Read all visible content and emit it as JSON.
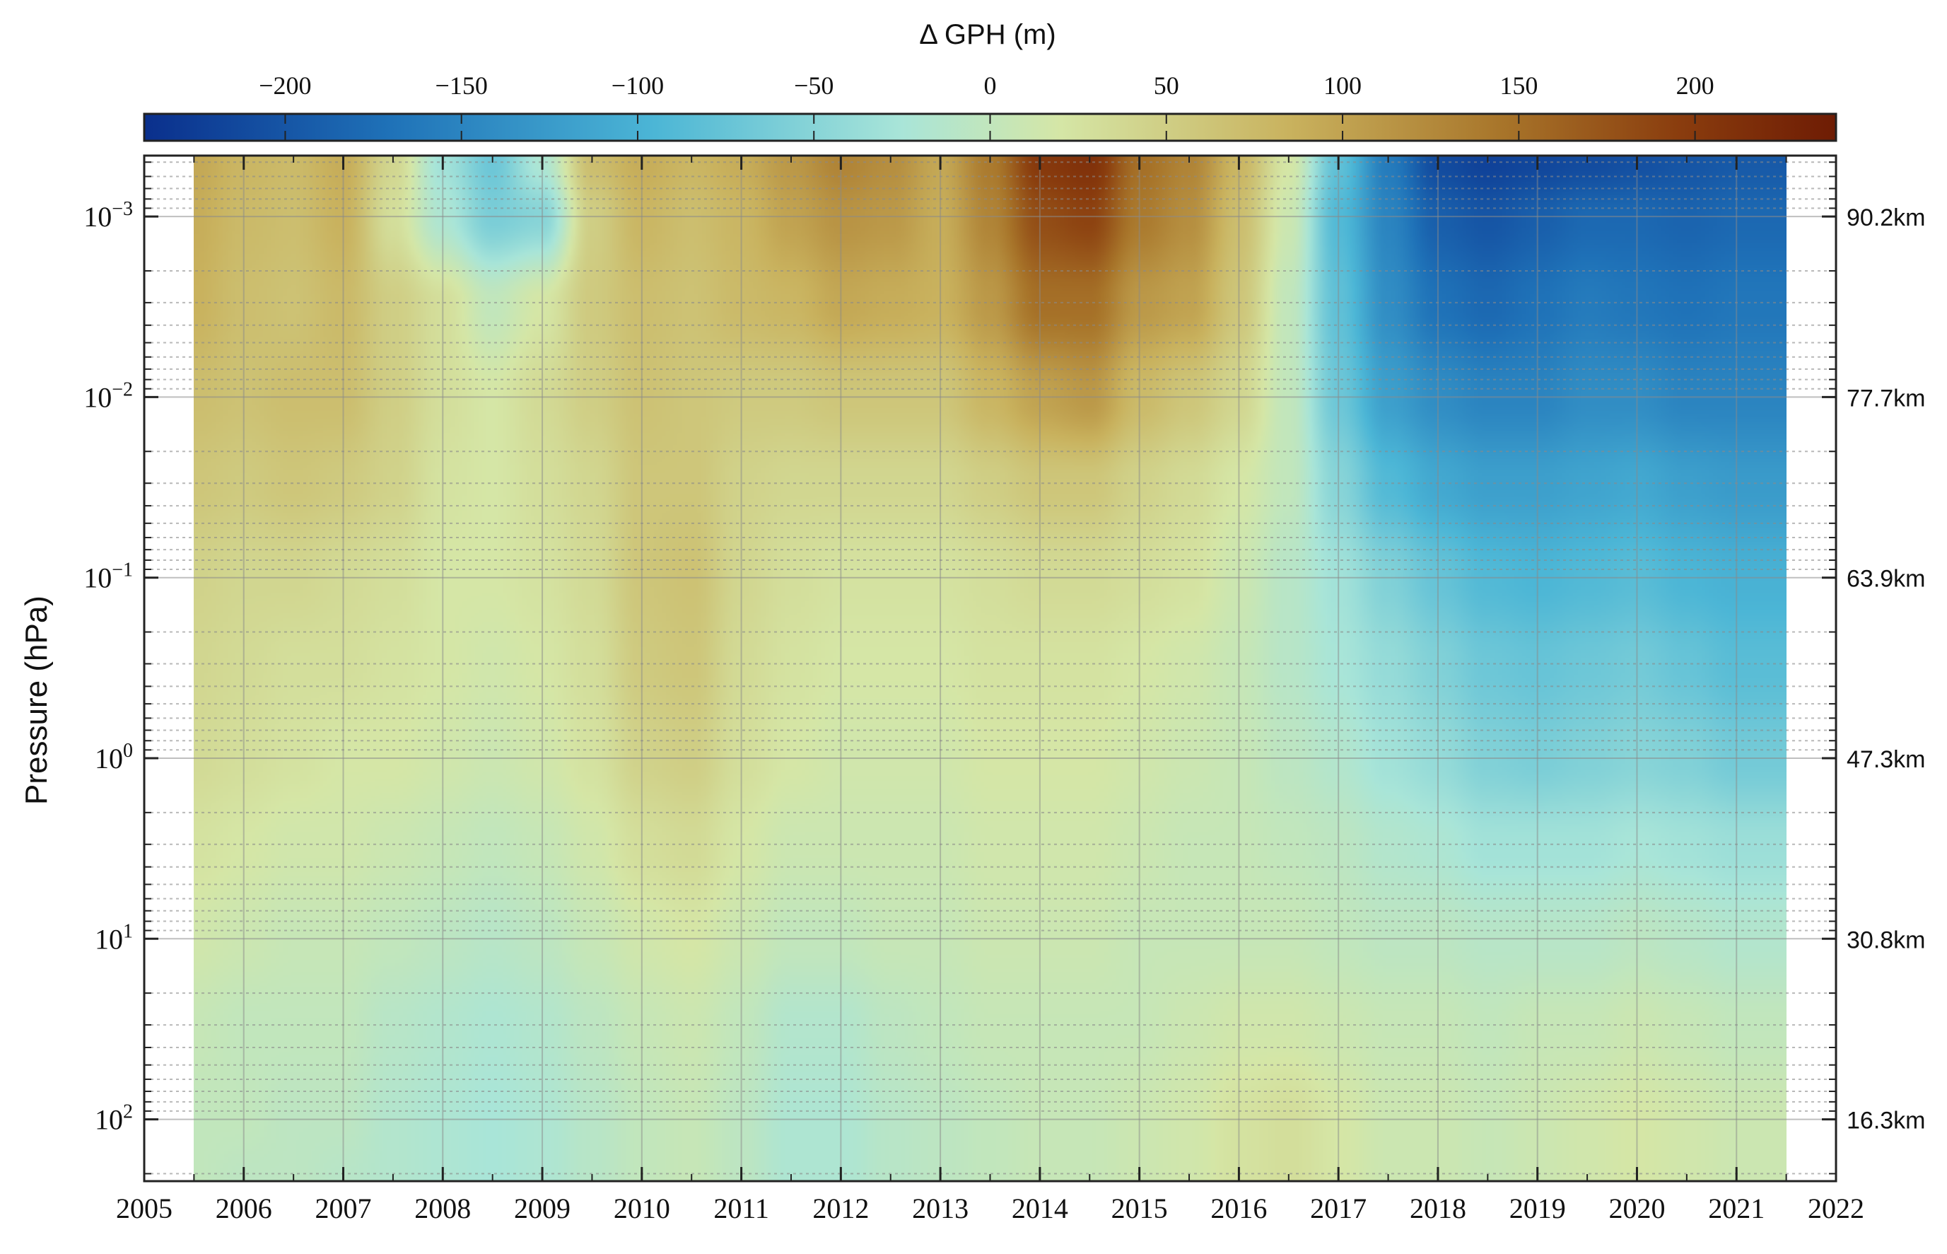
{
  "chart_data": {
    "type": "heatmap",
    "title": "",
    "xlabel": "",
    "ylabel": "Pressure (hPa)",
    "y_scale": "log",
    "y_inverted": true,
    "grid": true,
    "xlim": [
      2005,
      2022
    ],
    "ylim_hpa": [
      0.00046,
      220
    ],
    "x_ticks": [
      "2005",
      "2006",
      "2007",
      "2008",
      "2009",
      "2010",
      "2011",
      "2012",
      "2013",
      "2014",
      "2015",
      "2016",
      "2017",
      "2018",
      "2019",
      "2020",
      "2021",
      "2022"
    ],
    "x_tick_values": [
      2005,
      2006,
      2007,
      2008,
      2009,
      2010,
      2011,
      2012,
      2013,
      2014,
      2015,
      2016,
      2017,
      2018,
      2019,
      2020,
      2021,
      2022
    ],
    "y_ticks": [
      {
        "value": 0.001,
        "base": "10",
        "exp": "−3"
      },
      {
        "value": 0.01,
        "base": "10",
        "exp": "−2"
      },
      {
        "value": 0.1,
        "base": "10",
        "exp": "−1"
      },
      {
        "value": 1,
        "base": "10",
        "exp": "0"
      },
      {
        "value": 10,
        "base": "10",
        "exp": "1"
      },
      {
        "value": 100,
        "base": "10",
        "exp": "2"
      }
    ],
    "right_axis_ticks": [
      {
        "pressure": 0.001,
        "label": "90.2km"
      },
      {
        "pressure": 0.01,
        "label": "77.7km"
      },
      {
        "pressure": 0.1,
        "label": "63.9km"
      },
      {
        "pressure": 1,
        "label": "47.3km"
      },
      {
        "pressure": 10,
        "label": "30.8km"
      },
      {
        "pressure": 100,
        "label": "16.3km"
      }
    ],
    "colorbar": {
      "label": "Δ GPH (m)",
      "range": [
        -240,
        240
      ],
      "ticks": [
        -200,
        -150,
        -100,
        -50,
        0,
        50,
        100,
        150,
        200
      ],
      "tick_labels": [
        "−200",
        "−150",
        "−100",
        "−50",
        "0",
        "50",
        "100",
        "150",
        "200"
      ],
      "colors": [
        "#0a2f8c",
        "#1f72b8",
        "#4cb6d6",
        "#a9e5d8",
        "#d5e6a6",
        "#c9b25e",
        "#a8752a",
        "#8a3d0e",
        "#6e1c04"
      ],
      "color_values": [
        -240,
        -170,
        -95,
        -25,
        20,
        85,
        145,
        195,
        240
      ]
    },
    "data_extent_years": [
      2005.5,
      2021.5
    ],
    "data_years": [
      2005.5,
      2006,
      2006.5,
      2007,
      2007.5,
      2008,
      2008.5,
      2009,
      2009.5,
      2010,
      2010.5,
      2011,
      2011.5,
      2012,
      2012.5,
      2013,
      2013.5,
      2014,
      2014.5,
      2015,
      2015.5,
      2016,
      2016.5,
      2017,
      2017.5,
      2018,
      2018.5,
      2019,
      2019.5,
      2020,
      2020.5,
      2021,
      2021.5
    ],
    "data_pressures_hpa": [
      0.0005,
      0.001,
      0.003,
      0.01,
      0.03,
      0.1,
      0.3,
      1,
      3,
      10,
      30,
      100,
      220
    ],
    "delta_gph_m": [
      [
        95,
        80,
        75,
        90,
        40,
        -30,
        -70,
        -20,
        70,
        90,
        80,
        90,
        110,
        130,
        120,
        95,
        140,
        200,
        210,
        150,
        130,
        80,
        20,
        -80,
        -160,
        -210,
        -220,
        -215,
        -210,
        -205,
        -200,
        -195,
        -195
      ],
      [
        90,
        75,
        70,
        85,
        30,
        -20,
        -60,
        -50,
        50,
        80,
        70,
        80,
        100,
        115,
        110,
        90,
        130,
        180,
        190,
        140,
        120,
        70,
        10,
        -90,
        -150,
        -190,
        -200,
        -190,
        -180,
        -180,
        -185,
        -180,
        -180
      ],
      [
        85,
        70,
        65,
        75,
        50,
        30,
        0,
        20,
        55,
        70,
        65,
        75,
        80,
        95,
        90,
        85,
        110,
        150,
        150,
        110,
        100,
        60,
        0,
        -80,
        -140,
        -170,
        -180,
        -170,
        -160,
        -165,
        -170,
        -165,
        -165
      ],
      [
        70,
        65,
        70,
        70,
        50,
        30,
        20,
        35,
        50,
        65,
        60,
        55,
        55,
        60,
        60,
        60,
        80,
        100,
        110,
        75,
        60,
        40,
        0,
        -70,
        -120,
        -140,
        -150,
        -150,
        -140,
        -140,
        -150,
        -150,
        -150
      ],
      [
        60,
        55,
        60,
        55,
        45,
        25,
        20,
        30,
        40,
        60,
        60,
        45,
        40,
        40,
        40,
        40,
        50,
        60,
        60,
        45,
        35,
        20,
        0,
        -50,
        -90,
        -110,
        -120,
        -120,
        -115,
        -110,
        -120,
        -125,
        -125
      ],
      [
        45,
        40,
        40,
        35,
        30,
        20,
        20,
        25,
        35,
        60,
        65,
        40,
        30,
        25,
        25,
        25,
        30,
        35,
        35,
        30,
        25,
        10,
        -10,
        -30,
        -55,
        -75,
        -90,
        -95,
        -90,
        -85,
        -95,
        -100,
        -100
      ],
      [
        40,
        35,
        30,
        30,
        25,
        20,
        15,
        20,
        30,
        55,
        60,
        35,
        25,
        20,
        20,
        20,
        25,
        25,
        25,
        20,
        15,
        5,
        -10,
        -25,
        -40,
        -55,
        -70,
        -75,
        -70,
        -65,
        -75,
        -85,
        -85
      ],
      [
        35,
        30,
        25,
        20,
        20,
        15,
        10,
        15,
        25,
        45,
        50,
        30,
        20,
        15,
        15,
        15,
        20,
        20,
        20,
        15,
        10,
        5,
        -5,
        -15,
        -30,
        -40,
        -55,
        -60,
        -55,
        -50,
        -55,
        -65,
        -65
      ],
      [
        25,
        20,
        15,
        15,
        10,
        5,
        0,
        5,
        15,
        30,
        35,
        20,
        10,
        10,
        10,
        10,
        15,
        15,
        15,
        10,
        5,
        5,
        0,
        -5,
        -15,
        -20,
        -30,
        -30,
        -30,
        -25,
        -30,
        -35,
        -35
      ],
      [
        15,
        10,
        5,
        5,
        0,
        -5,
        -10,
        -5,
        5,
        15,
        20,
        10,
        0,
        0,
        5,
        5,
        10,
        10,
        10,
        5,
        5,
        5,
        5,
        0,
        -5,
        -5,
        -10,
        -10,
        -10,
        -5,
        -10,
        -15,
        -15
      ],
      [
        5,
        0,
        0,
        0,
        -10,
        -15,
        -20,
        -15,
        -5,
        5,
        10,
        0,
        -15,
        -15,
        -5,
        0,
        5,
        5,
        5,
        5,
        10,
        15,
        15,
        10,
        5,
        5,
        0,
        5,
        5,
        10,
        5,
        0,
        0
      ],
      [
        0,
        0,
        -5,
        -5,
        -15,
        -20,
        -25,
        -20,
        -10,
        0,
        5,
        -5,
        -20,
        -20,
        -10,
        -5,
        0,
        5,
        5,
        10,
        15,
        25,
        30,
        20,
        10,
        10,
        5,
        10,
        15,
        20,
        15,
        10,
        10
      ],
      [
        0,
        -5,
        -5,
        -10,
        -15,
        -20,
        -25,
        -20,
        -10,
        0,
        5,
        -5,
        -20,
        -20,
        -10,
        -5,
        0,
        5,
        5,
        10,
        15,
        25,
        30,
        20,
        10,
        10,
        5,
        10,
        15,
        20,
        15,
        10,
        10
      ]
    ]
  }
}
